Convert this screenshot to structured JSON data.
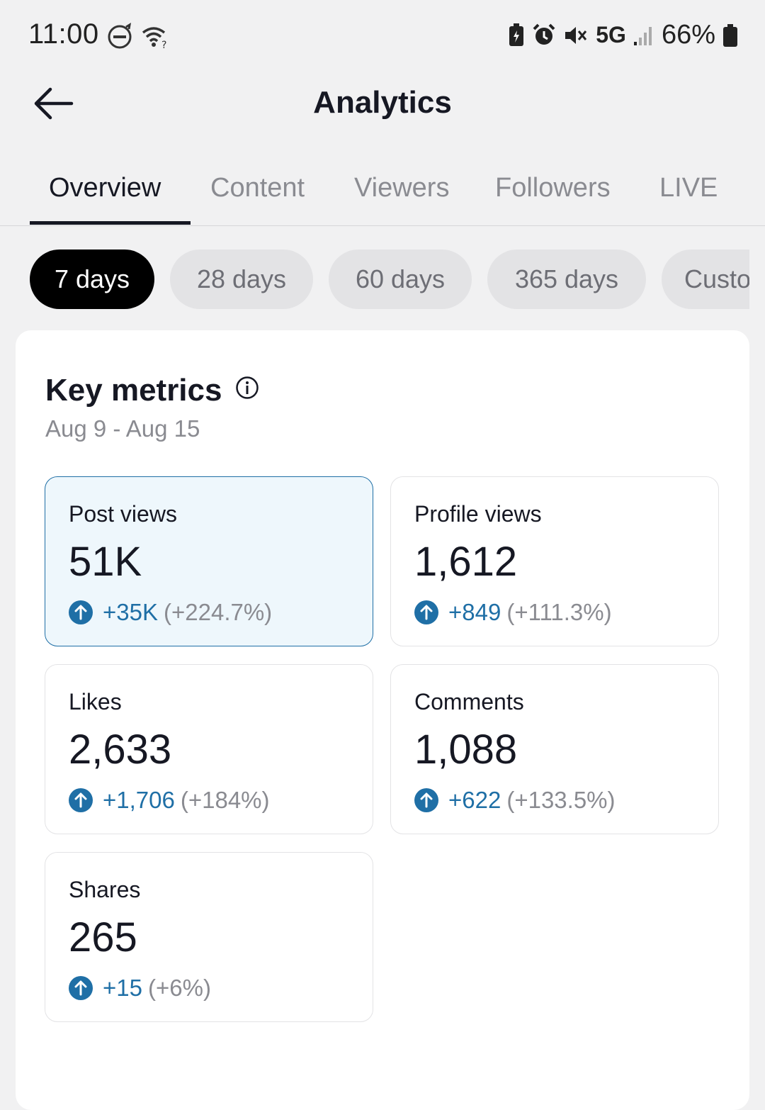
{
  "status_bar": {
    "time": "11:00",
    "network": "5G",
    "battery": "66%"
  },
  "header": {
    "title": "Analytics"
  },
  "tabs": [
    {
      "label": "Overview",
      "active": true
    },
    {
      "label": "Content",
      "active": false
    },
    {
      "label": "Viewers",
      "active": false
    },
    {
      "label": "Followers",
      "active": false
    },
    {
      "label": "LIVE",
      "active": false
    }
  ],
  "ranges": [
    {
      "label": "7 days",
      "active": true
    },
    {
      "label": "28 days",
      "active": false
    },
    {
      "label": "60 days",
      "active": false
    },
    {
      "label": "365 days",
      "active": false
    },
    {
      "label": "Custom",
      "active": false
    }
  ],
  "key_metrics": {
    "title": "Key metrics",
    "date_range": "Aug 9 - Aug 15",
    "metrics": [
      {
        "label": "Post views",
        "value": "51K",
        "delta": "+35K",
        "pct": "(+224.7%)",
        "selected": true
      },
      {
        "label": "Profile views",
        "value": "1,612",
        "delta": "+849",
        "pct": "(+111.3%)",
        "selected": false
      },
      {
        "label": "Likes",
        "value": "2,633",
        "delta": "+1,706",
        "pct": "(+184%)",
        "selected": false
      },
      {
        "label": "Comments",
        "value": "1,088",
        "delta": "+622",
        "pct": "(+133.5%)",
        "selected": false
      },
      {
        "label": "Shares",
        "value": "265",
        "delta": "+15",
        "pct": "(+6%)",
        "selected": false
      }
    ]
  },
  "colors": {
    "accent_blue": "#1f6fa6",
    "selected_bg": "#eef7fc",
    "active_chip": "#000000",
    "chip_bg": "#e3e3e5"
  }
}
